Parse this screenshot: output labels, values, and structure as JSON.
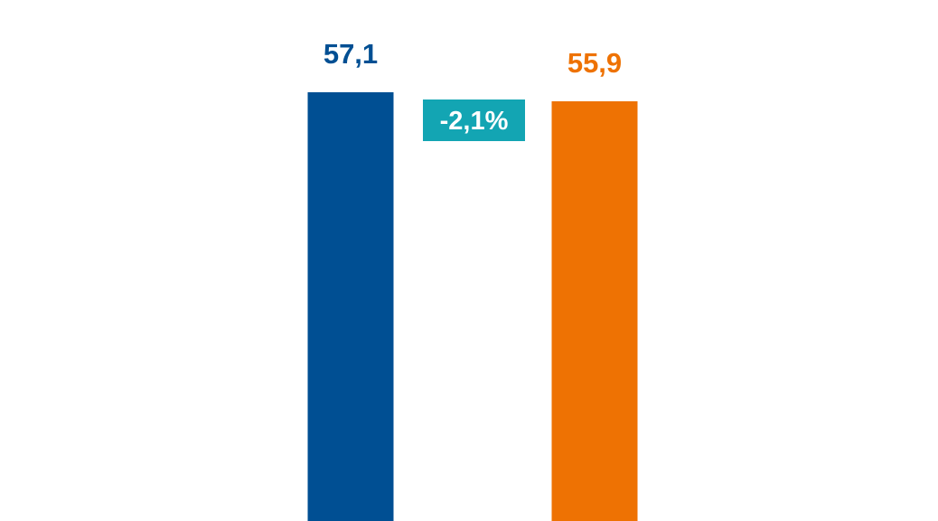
{
  "chart_data": {
    "type": "bar",
    "series": [
      {
        "value": 57.1,
        "label": "57,1",
        "color": "#004f93"
      },
      {
        "value": 55.9,
        "label": "55,9",
        "color": "#ee7203"
      }
    ],
    "annotations": [
      {
        "text": "-2,1%",
        "background": "#13a5b3",
        "text_color": "#ffffff"
      }
    ],
    "ylim": [
      0,
      57.1
    ],
    "grid": false,
    "legend": "none"
  }
}
